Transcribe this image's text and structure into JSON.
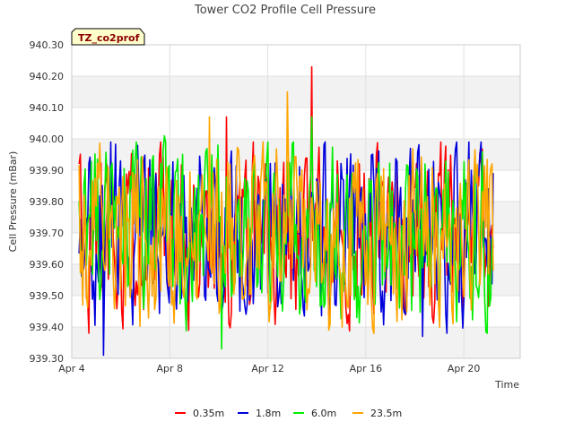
{
  "chart_data": {
    "type": "line",
    "title": "Tower CO2 Profile Cell Pressure",
    "badge": "TZ_co2prof",
    "xlabel": "Time",
    "ylabel": "Cell Pressure (mBar)",
    "ylim": [
      939.3,
      940.3
    ],
    "yticks": [
      "939.30",
      "939.40",
      "939.50",
      "939.60",
      "939.70",
      "939.80",
      "939.90",
      "940.00",
      "940.10",
      "940.20",
      "940.30"
    ],
    "xlim_days": [
      4,
      22.3
    ],
    "xticks": [
      {
        "label": "Apr 4",
        "day": 4
      },
      {
        "label": "Apr 8",
        "day": 8
      },
      {
        "label": "Apr 12",
        "day": 12
      },
      {
        "label": "Apr 16",
        "day": 16
      },
      {
        "label": "Apr 20",
        "day": 20
      }
    ],
    "grid": true,
    "legend_position": "bottom",
    "series": [
      {
        "name": "0.35m",
        "color": "#ff0000",
        "day_start": 4.3,
        "day_end": 21.2,
        "seed": 11,
        "values_noted": [
          {
            "day": 13.8,
            "value": 940.23
          },
          {
            "day": 10.3,
            "value": 940.07
          },
          {
            "day": 4.3,
            "value": 939.92
          }
        ]
      },
      {
        "name": "1.8m",
        "color": "#0000dd",
        "day_start": 4.3,
        "day_end": 21.2,
        "seed": 23,
        "values_noted": [
          {
            "day": 5.3,
            "value": 939.31
          },
          {
            "day": 5.6,
            "value": 939.99
          },
          {
            "day": 18.3,
            "value": 939.37
          }
        ]
      },
      {
        "name": "6.0m",
        "color": "#00ee00",
        "day_start": 4.3,
        "day_end": 21.2,
        "seed": 37,
        "values_noted": [
          {
            "day": 10.1,
            "value": 939.33
          },
          {
            "day": 13.8,
            "value": 940.07
          },
          {
            "day": 7.8,
            "value": 940.01
          }
        ]
      },
      {
        "name": "23.5m",
        "color": "#ffa500",
        "day_start": 4.3,
        "day_end": 21.2,
        "seed": 53,
        "values_noted": [
          {
            "day": 12.8,
            "value": 940.15
          },
          {
            "day": 9.6,
            "value": 940.07
          },
          {
            "day": 14.5,
            "value": 939.39
          }
        ]
      }
    ]
  }
}
